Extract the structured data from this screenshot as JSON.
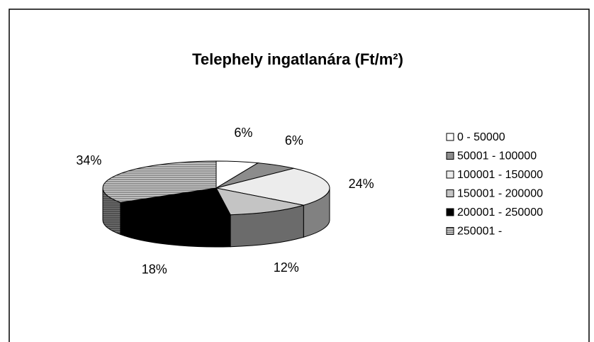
{
  "chart_data": {
    "type": "pie3d",
    "title": "Telephely ingatlanára (Ft/m²)",
    "categories": [
      "0 - 50000",
      "50001 - 100000",
      "100001 - 150000",
      "150001 - 200000",
      "200001 - 250000",
      "250001 -"
    ],
    "values": [
      6,
      6,
      24,
      12,
      18,
      34
    ],
    "value_labels": [
      "6%",
      "6%",
      "24%",
      "12%",
      "18%",
      "34%"
    ],
    "colors": [
      "#ffffff",
      "#8c8c8c",
      "#ececec",
      "#c4c4c4",
      "#000000",
      "#9a9a9a"
    ],
    "legend": "right"
  }
}
